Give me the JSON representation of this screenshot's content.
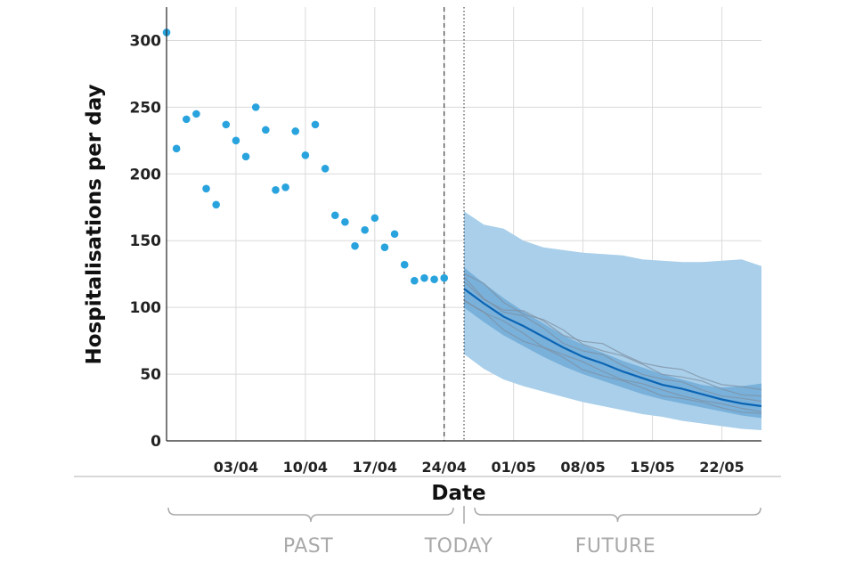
{
  "chart_data": {
    "type": "line",
    "title": "",
    "xlabel": "Date",
    "ylabel": "Hospitalisations per day",
    "ylim": [
      0,
      325
    ],
    "ytick_values": [
      0,
      50,
      100,
      150,
      200,
      250,
      300
    ],
    "ytick_labels": [
      "0",
      "50",
      "100",
      "150",
      "200",
      "250",
      "300"
    ],
    "xlim": [
      "2020-03-27",
      "2020-05-26"
    ],
    "xtick_dates": [
      "2020-04-03",
      "2020-04-10",
      "2020-04-17",
      "2020-04-24",
      "2020-05-01",
      "2020-05-08",
      "2020-05-15",
      "2020-05-22"
    ],
    "xtick_labels": [
      "03/04",
      "10/04",
      "17/04",
      "24/04",
      "01/05",
      "08/05",
      "15/05",
      "22/05"
    ],
    "grid": true,
    "reference_lines": [
      {
        "date": "2020-04-24",
        "style": "dashed"
      },
      {
        "date": "2020-04-26",
        "style": "dotted"
      }
    ],
    "periods": [
      {
        "label": "PAST",
        "start": "2020-03-27",
        "end": "2020-04-26"
      },
      {
        "label": "TODAY",
        "date": "2020-04-26"
      },
      {
        "label": "FUTURE",
        "start": "2020-04-27",
        "end": "2020-05-26"
      }
    ],
    "observed": {
      "x": [
        "2020-03-27",
        "2020-03-28",
        "2020-03-29",
        "2020-03-30",
        "2020-03-31",
        "2020-04-01",
        "2020-04-02",
        "2020-04-03",
        "2020-04-04",
        "2020-04-05",
        "2020-04-06",
        "2020-04-07",
        "2020-04-08",
        "2020-04-09",
        "2020-04-10",
        "2020-04-11",
        "2020-04-12",
        "2020-04-13",
        "2020-04-14",
        "2020-04-15",
        "2020-04-16",
        "2020-04-17",
        "2020-04-18",
        "2020-04-19",
        "2020-04-20",
        "2020-04-21",
        "2020-04-22",
        "2020-04-23",
        "2020-04-24"
      ],
      "y": [
        306,
        219,
        241,
        245,
        189,
        177,
        237,
        225,
        213,
        250,
        233,
        188,
        190,
        232,
        214,
        237,
        204,
        169,
        164,
        146,
        158,
        167,
        145,
        155,
        132,
        120,
        122,
        121,
        122
      ],
      "color": "#29a3dd"
    },
    "forecast": {
      "x": [
        "2020-04-26",
        "2020-04-28",
        "2020-04-30",
        "2020-05-02",
        "2020-05-04",
        "2020-05-06",
        "2020-05-08",
        "2020-05-10",
        "2020-05-12",
        "2020-05-14",
        "2020-05-16",
        "2020-05-18",
        "2020-05-20",
        "2020-05-22",
        "2020-05-24",
        "2020-05-26"
      ],
      "median": [
        114,
        103,
        93,
        86,
        78,
        70,
        63,
        58,
        52,
        47,
        42,
        39,
        35,
        31,
        28,
        26
      ],
      "outer_upper": [
        172,
        162,
        159,
        150,
        145,
        143,
        141,
        140,
        139,
        136,
        135,
        134,
        134,
        135,
        136,
        131
      ],
      "outer_lower": [
        65,
        54,
        46,
        41,
        37,
        33,
        29,
        26,
        23,
        20,
        18,
        15,
        13,
        11,
        9,
        8
      ],
      "inner_upper": [
        130,
        118,
        107,
        97,
        88,
        79,
        72,
        66,
        60,
        55,
        50,
        46,
        42,
        40,
        41,
        43
      ],
      "inner_lower": [
        100,
        89,
        79,
        71,
        63,
        56,
        50,
        45,
        40,
        35,
        31,
        28,
        25,
        22,
        19,
        17
      ],
      "colors": {
        "outer_band": "#a9cfea",
        "inner_band": "#6aa7d6",
        "median": "#0b64b3",
        "trajectories": "#7f8fa0"
      }
    }
  }
}
